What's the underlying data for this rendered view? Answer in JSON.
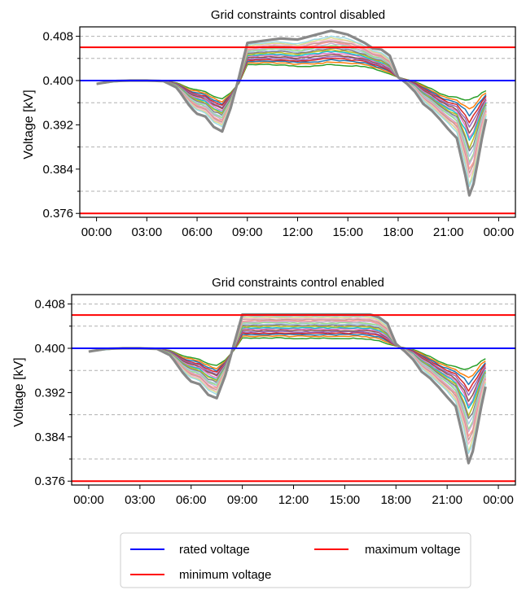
{
  "chart_data": [
    {
      "type": "line",
      "title": "Grid constraints control disabled",
      "xlabel": "",
      "ylabel": "Voltage [kV]",
      "x_tick_labels": [
        "00:00",
        "03:00",
        "06:00",
        "09:00",
        "12:00",
        "15:00",
        "18:00",
        "21:00",
        "00:00"
      ],
      "x_hours": [
        0,
        3,
        6,
        9,
        12,
        15,
        18,
        21,
        24
      ],
      "xlim_hours": [
        -1.0,
        25.0
      ],
      "y_tick_labels": [
        "0.376",
        "0.384",
        "0.392",
        "0.400",
        "0.408"
      ],
      "y_ticks": [
        0.376,
        0.384,
        0.392,
        0.4,
        0.408
      ],
      "ylim": [
        0.3753,
        0.4097
      ],
      "grid_y_dashed": [
        0.38,
        0.388,
        0.396,
        0.404,
        0.408
      ],
      "reference_lines": [
        {
          "name": "rated voltage",
          "value": 0.4,
          "color": "#0000ff"
        },
        {
          "name": "maximum voltage",
          "value": 0.406,
          "color": "#ff0000"
        },
        {
          "name": "minimum voltage",
          "value": 0.376,
          "color": "#ff0000"
        }
      ],
      "envelope": {
        "hours": [
          0,
          1,
          2,
          3,
          4,
          4.8,
          5.6,
          6.0,
          6.5,
          7.0,
          7.5,
          8.0,
          8.5,
          9.0,
          10.0,
          11.0,
          12.0,
          13.0,
          14.0,
          15.0,
          16.0,
          16.5,
          17.0,
          17.5,
          18.0,
          18.5,
          19.0,
          19.5,
          20.0,
          20.5,
          21.0,
          21.5,
          22.0,
          22.3,
          22.6,
          23.0,
          23.4
        ],
        "top": [
          0.3994,
          0.4,
          0.4,
          0.4,
          0.4,
          0.3996,
          0.3985,
          0.3984,
          0.398,
          0.3972,
          0.3966,
          0.3978,
          0.3995,
          0.4028,
          0.4029,
          0.4028,
          0.4026,
          0.4026,
          0.4029,
          0.4027,
          0.4026,
          0.4022,
          0.4017,
          0.4012,
          0.4006,
          0.4002,
          0.3998,
          0.3992,
          0.3985,
          0.3977,
          0.3972,
          0.397,
          0.3965,
          0.3962,
          0.397,
          0.3978,
          0.3983
        ],
        "bottom": [
          0.3994,
          0.3997,
          0.4,
          0.4,
          0.3999,
          0.3985,
          0.3955,
          0.3945,
          0.394,
          0.3922,
          0.3915,
          0.3952,
          0.4005,
          0.4066,
          0.407,
          0.4072,
          0.4068,
          0.4076,
          0.4082,
          0.4078,
          0.4065,
          0.4055,
          0.4052,
          0.404,
          0.4005,
          0.3995,
          0.3982,
          0.3962,
          0.395,
          0.3935,
          0.392,
          0.3905,
          0.3842,
          0.379,
          0.3835,
          0.3902,
          0.3955
        ],
        "peak": [
          0.3994,
          0.3999,
          0.4,
          0.4,
          0.3999,
          0.3987,
          0.3952,
          0.394,
          0.3935,
          0.3916,
          0.3908,
          0.395,
          0.4006,
          0.4068,
          0.4072,
          0.4076,
          0.4074,
          0.4082,
          0.409,
          0.4083,
          0.4068,
          0.4058,
          0.4056,
          0.4045,
          0.4006,
          0.3995,
          0.398,
          0.3958,
          0.3946,
          0.393,
          0.3912,
          0.3896,
          0.383,
          0.3785,
          0.3828,
          0.3895,
          0.3952
        ]
      },
      "curve_count": 18
    },
    {
      "type": "line",
      "title": "Grid constraints control enabled",
      "xlabel": "",
      "ylabel": "Voltage [kV]",
      "x_tick_labels": [
        "00:00",
        "03:00",
        "06:00",
        "09:00",
        "12:00",
        "15:00",
        "18:00",
        "21:00",
        "00:00"
      ],
      "x_hours": [
        0,
        3,
        6,
        9,
        12,
        15,
        18,
        21,
        24
      ],
      "xlim_hours": [
        -1.0,
        25.0
      ],
      "y_tick_labels": [
        "0.376",
        "0.384",
        "0.392",
        "0.400",
        "0.408"
      ],
      "y_ticks": [
        0.376,
        0.384,
        0.392,
        0.4,
        0.408
      ],
      "ylim": [
        0.3753,
        0.4097
      ],
      "grid_y_dashed": [
        0.38,
        0.388,
        0.396,
        0.404,
        0.408
      ],
      "reference_lines": [
        {
          "name": "rated voltage",
          "value": 0.4,
          "color": "#0000ff"
        },
        {
          "name": "maximum voltage",
          "value": 0.406,
          "color": "#ff0000"
        },
        {
          "name": "minimum voltage",
          "value": 0.376,
          "color": "#ff0000"
        }
      ],
      "envelope": {
        "hours": [
          0,
          1,
          2,
          3,
          4,
          4.8,
          5.6,
          6.0,
          6.5,
          7.0,
          7.5,
          8.0,
          8.5,
          9.0,
          10.0,
          11.0,
          12.0,
          13.0,
          14.0,
          15.0,
          16.0,
          16.5,
          17.0,
          17.5,
          18.0,
          18.5,
          19.0,
          19.5,
          20.0,
          20.5,
          21.0,
          21.5,
          22.0,
          22.3,
          22.6,
          23.0,
          23.4
        ],
        "top": [
          0.3994,
          0.4,
          0.4,
          0.4,
          0.4,
          0.3996,
          0.3985,
          0.3984,
          0.398,
          0.3973,
          0.3968,
          0.3979,
          0.3996,
          0.4018,
          0.4018,
          0.4019,
          0.4018,
          0.4018,
          0.4018,
          0.4018,
          0.4018,
          0.4016,
          0.4014,
          0.4008,
          0.4004,
          0.4001,
          0.3998,
          0.3992,
          0.3985,
          0.3977,
          0.3971,
          0.3967,
          0.3962,
          0.396,
          0.3968,
          0.3977,
          0.3983
        ],
        "bottom": [
          0.3994,
          0.3997,
          0.4,
          0.4,
          0.3999,
          0.3985,
          0.3955,
          0.3945,
          0.394,
          0.3922,
          0.3915,
          0.3953,
          0.4005,
          0.406,
          0.406,
          0.406,
          0.406,
          0.406,
          0.406,
          0.406,
          0.406,
          0.406,
          0.4055,
          0.4042,
          0.4008,
          0.3996,
          0.3982,
          0.3962,
          0.395,
          0.3935,
          0.392,
          0.3902,
          0.3845,
          0.3792,
          0.3835,
          0.3902,
          0.3955
        ],
        "peak": [
          0.3994,
          0.3999,
          0.4,
          0.4,
          0.3999,
          0.3987,
          0.3952,
          0.394,
          0.3935,
          0.3916,
          0.391,
          0.3951,
          0.4006,
          0.4061,
          0.4061,
          0.4061,
          0.4061,
          0.4061,
          0.4061,
          0.4061,
          0.4061,
          0.4061,
          0.4056,
          0.4045,
          0.4008,
          0.3995,
          0.398,
          0.3958,
          0.3946,
          0.393,
          0.3912,
          0.3895,
          0.383,
          0.3785,
          0.3828,
          0.3895,
          0.3952
        ]
      },
      "curve_count": 18
    }
  ],
  "legend": {
    "placement": "bottom-center",
    "items": [
      {
        "label": "rated voltage",
        "color": "#0000ff"
      },
      {
        "label": "maximum voltage",
        "color": "#ff0000"
      },
      {
        "label": "minimum voltage",
        "color": "#ff0000"
      }
    ]
  },
  "colors": {
    "curve_cycle": [
      "#2ca02c",
      "#ff7f0e",
      "#1f77b4",
      "#d62728",
      "#9467bd",
      "#8c564b",
      "#e377c2",
      "#17becf",
      "#bcbd22",
      "#7f7f7f",
      "#aec7e8",
      "#98df8a",
      "#c5b0d5",
      "#ff9896",
      "#c49c94",
      "#f7b6d2",
      "#dbdb8d",
      "#9edae5"
    ],
    "outer_curve": "#888888",
    "grid": "#b0b0b0"
  }
}
